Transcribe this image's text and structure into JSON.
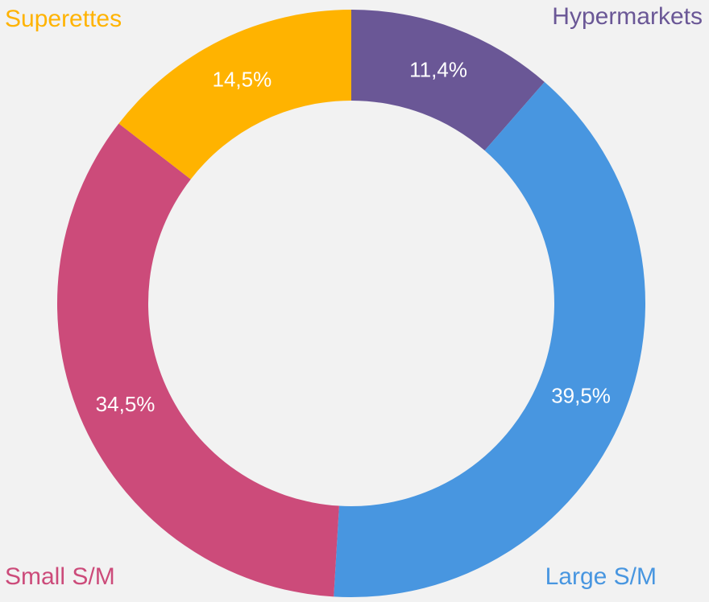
{
  "chart_data": {
    "type": "donut",
    "categories": [
      "Hypermarkets",
      "Large S/M",
      "Small S/M",
      "Superettes"
    ],
    "values": [
      11.4,
      39.5,
      34.5,
      14.5
    ],
    "value_labels": [
      "11,4%",
      "39,5%",
      "34,5%",
      "14,5%"
    ],
    "colors": [
      "#6a5796",
      "#4896e0",
      "#cc4b7a",
      "#ffb300"
    ]
  }
}
